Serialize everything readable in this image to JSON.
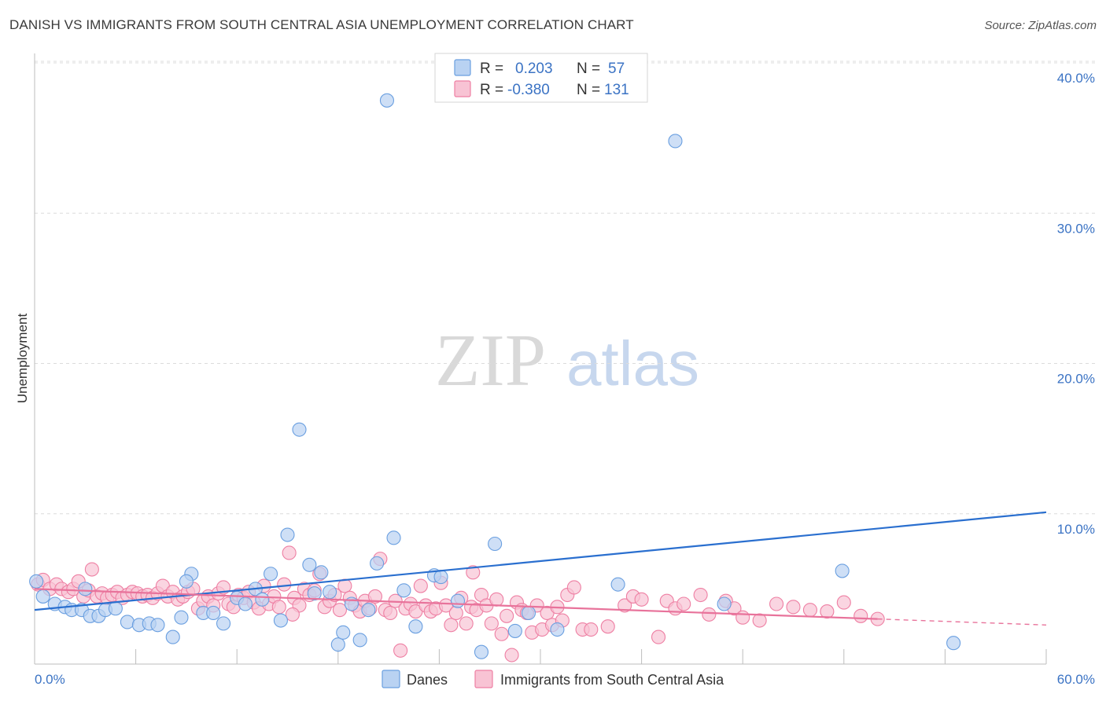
{
  "title": "DANISH VS IMMIGRANTS FROM SOUTH CENTRAL ASIA UNEMPLOYMENT CORRELATION CHART",
  "source": "Source: ZipAtlas.com",
  "colors": {
    "blue": "#6a9fe0",
    "blue_fill": "#b9d2f2",
    "pink": "#ee7fa3",
    "pink_fill": "#f8c3d4",
    "blue_line": "#2a6fcf",
    "pink_line": "#e8739b",
    "tick": "#3b73c4"
  },
  "chart_data": {
    "type": "scatter",
    "title": "DANISH VS IMMIGRANTS FROM SOUTH CENTRAL ASIA UNEMPLOYMENT CORRELATION CHART",
    "ylabel": "Unemployment",
    "xlabel": "",
    "xlim": [
      0,
      60
    ],
    "ylim": [
      0,
      40
    ],
    "x_tick_labels": [
      "0.0%",
      "60.0%"
    ],
    "y_ticks": [
      10,
      20,
      30,
      40
    ],
    "y_tick_labels": [
      "10.0%",
      "20.0%",
      "30.0%",
      "40.0%"
    ],
    "watermark": {
      "zip": "ZIP",
      "atlas": "atlas"
    },
    "legend": [
      {
        "r_label": "R =",
        "r_value": "0.203",
        "n_label": "N =",
        "n_value": "57"
      },
      {
        "r_label": "R =",
        "r_value": "-0.380",
        "n_label": "N =",
        "n_value": "131"
      }
    ],
    "series": [
      {
        "name": "Danes",
        "trend": {
          "x0": 0,
          "y0": 3.6,
          "x1": 60,
          "y1": 10.1
        },
        "points": [
          [
            0.1,
            5.5
          ],
          [
            0.5,
            4.5
          ],
          [
            1.2,
            4.0
          ],
          [
            1.8,
            3.8
          ],
          [
            2.2,
            3.6
          ],
          [
            2.8,
            3.6
          ],
          [
            3.3,
            3.2
          ],
          [
            3.8,
            3.2
          ],
          [
            4.2,
            3.6
          ],
          [
            4.8,
            3.7
          ],
          [
            5.5,
            2.8
          ],
          [
            6.2,
            2.6
          ],
          [
            6.8,
            2.7
          ],
          [
            7.3,
            2.6
          ],
          [
            8.2,
            1.8
          ],
          [
            8.7,
            3.1
          ],
          [
            9.3,
            6.0
          ],
          [
            10.0,
            3.4
          ],
          [
            10.6,
            3.4
          ],
          [
            11.2,
            2.7
          ],
          [
            12.0,
            4.4
          ],
          [
            12.5,
            4.0
          ],
          [
            13.1,
            5.0
          ],
          [
            13.5,
            4.3
          ],
          [
            14.0,
            6.0
          ],
          [
            14.6,
            2.9
          ],
          [
            15.0,
            8.6
          ],
          [
            15.7,
            15.6
          ],
          [
            16.3,
            6.6
          ],
          [
            16.6,
            4.7
          ],
          [
            17.0,
            6.1
          ],
          [
            17.5,
            4.8
          ],
          [
            18.0,
            1.3
          ],
          [
            18.3,
            2.1
          ],
          [
            18.8,
            4.0
          ],
          [
            19.3,
            1.6
          ],
          [
            19.8,
            3.6
          ],
          [
            20.3,
            6.7
          ],
          [
            20.9,
            37.5
          ],
          [
            21.3,
            8.4
          ],
          [
            21.9,
            4.9
          ],
          [
            22.6,
            2.5
          ],
          [
            23.7,
            5.9
          ],
          [
            24.1,
            5.8
          ],
          [
            25.1,
            4.2
          ],
          [
            26.5,
            0.8
          ],
          [
            27.3,
            8.0
          ],
          [
            28.5,
            2.2
          ],
          [
            29.3,
            3.4
          ],
          [
            31.0,
            2.3
          ],
          [
            34.6,
            5.3
          ],
          [
            38.0,
            34.8
          ],
          [
            40.9,
            4.0
          ],
          [
            47.9,
            6.2
          ],
          [
            54.5,
            1.4
          ],
          [
            3.0,
            5.0
          ],
          [
            9.0,
            5.5
          ]
        ]
      },
      {
        "name": "Immigrants from South Central Asia",
        "trend": {
          "x0": 0,
          "y0": 5.0,
          "x1": 50,
          "y1": 3.0,
          "dash_x1": 60,
          "dash_y1": 2.6
        },
        "points": [
          [
            0.2,
            5.3
          ],
          [
            0.5,
            5.6
          ],
          [
            0.9,
            5.0
          ],
          [
            1.3,
            5.3
          ],
          [
            1.6,
            5.0
          ],
          [
            2.0,
            4.8
          ],
          [
            2.3,
            5.0
          ],
          [
            2.6,
            5.5
          ],
          [
            2.9,
            4.5
          ],
          [
            3.2,
            4.9
          ],
          [
            3.4,
            6.3
          ],
          [
            3.7,
            4.5
          ],
          [
            4.0,
            4.7
          ],
          [
            4.3,
            4.4
          ],
          [
            4.6,
            4.6
          ],
          [
            4.9,
            4.8
          ],
          [
            5.2,
            4.4
          ],
          [
            5.5,
            4.6
          ],
          [
            5.8,
            4.8
          ],
          [
            6.1,
            4.7
          ],
          [
            6.4,
            4.5
          ],
          [
            6.7,
            4.6
          ],
          [
            7.0,
            4.4
          ],
          [
            7.3,
            4.7
          ],
          [
            7.6,
            5.2
          ],
          [
            7.9,
            4.5
          ],
          [
            8.2,
            4.8
          ],
          [
            8.5,
            4.3
          ],
          [
            8.8,
            4.5
          ],
          [
            9.1,
            4.8
          ],
          [
            9.4,
            5.0
          ],
          [
            9.7,
            3.7
          ],
          [
            10.0,
            4.2
          ],
          [
            10.3,
            4.5
          ],
          [
            10.6,
            3.9
          ],
          [
            10.9,
            4.7
          ],
          [
            11.2,
            5.1
          ],
          [
            11.5,
            4.0
          ],
          [
            11.8,
            3.8
          ],
          [
            12.1,
            4.6
          ],
          [
            12.4,
            4.4
          ],
          [
            12.7,
            4.8
          ],
          [
            13.0,
            4.1
          ],
          [
            13.3,
            3.7
          ],
          [
            13.6,
            5.2
          ],
          [
            13.9,
            4.0
          ],
          [
            14.2,
            4.5
          ],
          [
            14.5,
            3.8
          ],
          [
            14.8,
            5.3
          ],
          [
            15.1,
            7.4
          ],
          [
            15.4,
            4.4
          ],
          [
            15.7,
            3.9
          ],
          [
            16.0,
            5.0
          ],
          [
            16.3,
            4.6
          ],
          [
            16.6,
            4.9
          ],
          [
            16.9,
            6.0
          ],
          [
            17.2,
            3.8
          ],
          [
            17.5,
            4.2
          ],
          [
            17.8,
            4.6
          ],
          [
            18.1,
            3.6
          ],
          [
            18.4,
            5.2
          ],
          [
            18.7,
            4.4
          ],
          [
            19.0,
            3.9
          ],
          [
            19.3,
            3.5
          ],
          [
            19.6,
            4.2
          ],
          [
            19.9,
            3.7
          ],
          [
            20.2,
            4.5
          ],
          [
            20.5,
            7.0
          ],
          [
            20.8,
            3.6
          ],
          [
            21.1,
            3.4
          ],
          [
            21.4,
            4.2
          ],
          [
            21.7,
            0.9
          ],
          [
            22.0,
            3.7
          ],
          [
            22.3,
            4.0
          ],
          [
            22.6,
            3.5
          ],
          [
            22.9,
            5.2
          ],
          [
            23.2,
            3.9
          ],
          [
            23.5,
            3.5
          ],
          [
            23.8,
            3.7
          ],
          [
            24.1,
            5.4
          ],
          [
            24.4,
            3.9
          ],
          [
            24.7,
            2.6
          ],
          [
            25.0,
            3.4
          ],
          [
            25.3,
            4.4
          ],
          [
            25.6,
            2.7
          ],
          [
            25.9,
            3.8
          ],
          [
            26.2,
            3.6
          ],
          [
            26.5,
            4.6
          ],
          [
            26.8,
            3.9
          ],
          [
            27.1,
            2.7
          ],
          [
            27.4,
            4.3
          ],
          [
            27.7,
            2.0
          ],
          [
            28.0,
            3.2
          ],
          [
            28.3,
            0.6
          ],
          [
            28.6,
            4.1
          ],
          [
            28.9,
            3.6
          ],
          [
            29.2,
            3.4
          ],
          [
            29.5,
            2.1
          ],
          [
            29.8,
            3.9
          ],
          [
            30.1,
            2.3
          ],
          [
            30.4,
            3.4
          ],
          [
            30.7,
            2.6
          ],
          [
            31.0,
            3.8
          ],
          [
            31.3,
            2.9
          ],
          [
            31.6,
            4.6
          ],
          [
            32.0,
            5.1
          ],
          [
            32.5,
            2.3
          ],
          [
            33.0,
            2.3
          ],
          [
            34.0,
            2.5
          ],
          [
            35.0,
            3.9
          ],
          [
            35.5,
            4.5
          ],
          [
            36.0,
            4.3
          ],
          [
            37.0,
            1.8
          ],
          [
            37.5,
            4.2
          ],
          [
            38.0,
            3.7
          ],
          [
            38.5,
            4.0
          ],
          [
            39.5,
            4.6
          ],
          [
            40.0,
            3.3
          ],
          [
            41.0,
            4.2
          ],
          [
            41.5,
            3.7
          ],
          [
            42.0,
            3.1
          ],
          [
            43.0,
            2.9
          ],
          [
            44.0,
            4.0
          ],
          [
            45.0,
            3.8
          ],
          [
            46.0,
            3.6
          ],
          [
            47.0,
            3.5
          ],
          [
            48.0,
            4.1
          ],
          [
            49.0,
            3.2
          ],
          [
            50.0,
            3.0
          ],
          [
            26.0,
            6.1
          ],
          [
            15.3,
            3.3
          ]
        ]
      }
    ]
  },
  "bottom_legend": {
    "blue_label": "Danes",
    "pink_label": "Immigrants from South Central Asia"
  }
}
